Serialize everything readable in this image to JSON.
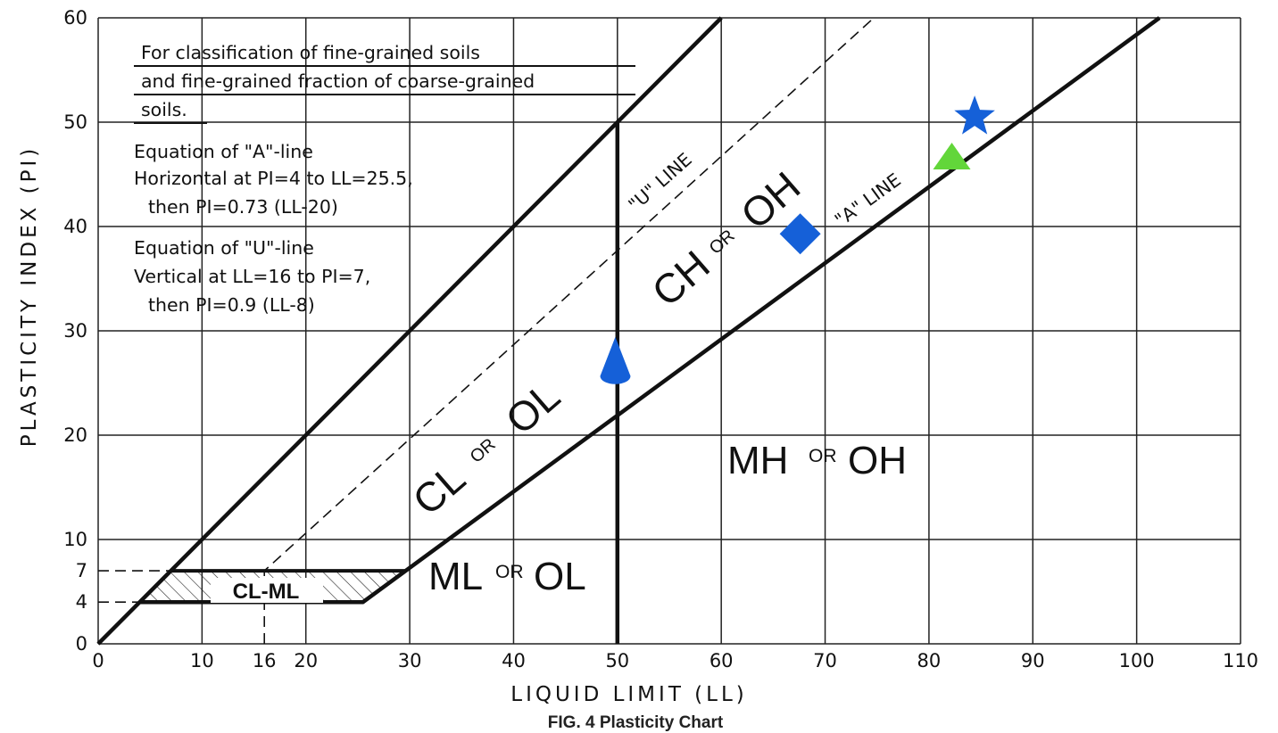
{
  "chart_data": {
    "type": "scatter",
    "title": "",
    "caption": "FIG. 4     Plasticity Chart",
    "xlabel": "LIQUID  LIMIT  (LL)",
    "ylabel": "PLASTICITY  INDEX (PI)",
    "xlim": [
      0,
      110
    ],
    "ylim": [
      0,
      60
    ],
    "x_ticks": [
      0,
      10,
      16,
      20,
      30,
      40,
      50,
      60,
      70,
      80,
      90,
      100,
      110
    ],
    "x_tick_labels": [
      "0",
      "10",
      "16",
      "20",
      "30",
      "40",
      "50",
      "60",
      "70",
      "80",
      "90",
      "100",
      "110"
    ],
    "y_ticks": [
      0,
      4,
      7,
      10,
      20,
      30,
      40,
      50,
      60
    ],
    "y_tick_labels": [
      "0",
      "4",
      "7",
      "10",
      "20",
      "30",
      "40",
      "50",
      "60"
    ],
    "grid": true,
    "notes": [
      "For classification of fine-grained soils",
      "and fine-grained fraction of coarse-grained",
      "soils.",
      "Equation of \"A\"-line",
      "Horizontal at PI=4 to LL=25.5,",
      "then PI=0.73 (LL-20)",
      "Equation of \"U\"-line",
      "Vertical at LL=16 to PI=7,",
      "then PI=0.9 (LL-8)"
    ],
    "lines": {
      "a_line_label": "\"A\" LINE",
      "u_line_label": "\"U\" LINE",
      "a_line": [
        [
          4,
          4
        ],
        [
          25.5,
          4
        ],
        [
          102.2,
          60
        ]
      ],
      "u_line": [
        [
          16,
          0
        ],
        [
          16,
          7
        ],
        [
          74.7,
          60
        ]
      ],
      "upper_boundary": [
        [
          0,
          0
        ],
        [
          60,
          60
        ]
      ],
      "ll50_vertical": [
        [
          50,
          0
        ],
        [
          50,
          50
        ]
      ],
      "cl_ml_band": [
        [
          4,
          4
        ],
        [
          25.5,
          4
        ],
        [
          29.6,
          7
        ],
        [
          7,
          7
        ]
      ]
    },
    "regions": [
      {
        "name": "CL-ML"
      },
      {
        "main": "CL",
        "or": "OR",
        "alt": "OL"
      },
      {
        "main": "CH",
        "or": "OR",
        "alt": "OH"
      },
      {
        "main": "ML",
        "or": "OR",
        "alt": "OL"
      },
      {
        "main": "MH",
        "or": "OR",
        "alt": "OH"
      }
    ],
    "markers": [
      {
        "shape": "cone",
        "x": 49.8,
        "y": 26,
        "color": "#1560d8"
      },
      {
        "shape": "diamond",
        "x": 67.6,
        "y": 39.3,
        "color": "#1560d8"
      },
      {
        "shape": "triangle",
        "x": 82.2,
        "y": 46.5,
        "color": "#62d63a"
      },
      {
        "shape": "star",
        "x": 84.4,
        "y": 50.5,
        "color": "#1560d8"
      }
    ]
  }
}
